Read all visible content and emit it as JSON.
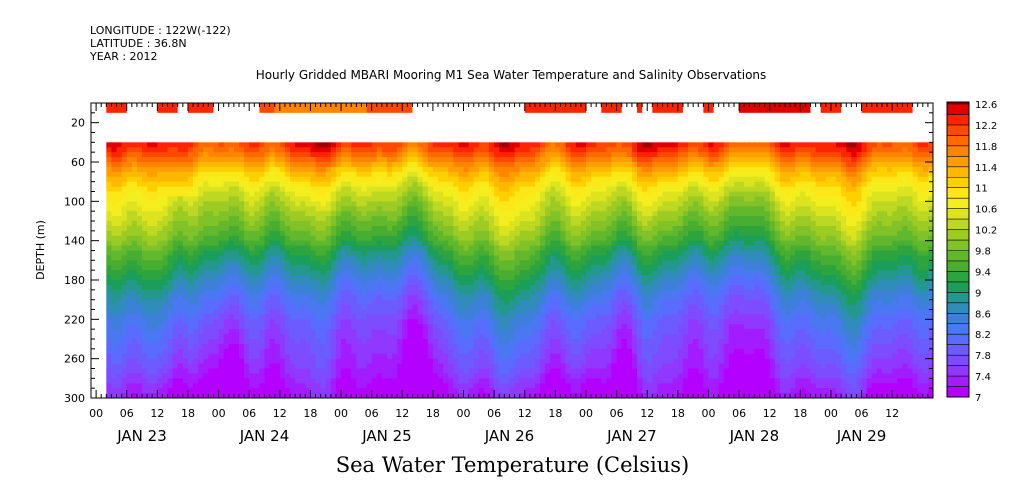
{
  "header": {
    "lines": [
      "LONGITUDE : 122W(-122)",
      "LATITUDE : 36.8N",
      "YEAR : 2012"
    ],
    "title": "Hourly Gridded MBARI Mooring M1 Sea Water Temperature and Salinity Observations"
  },
  "chart_data": {
    "type": "heatmap",
    "title": "Hourly Gridded MBARI Mooring M1 Sea Water Temperature and Salinity Observations",
    "xlabel": "",
    "ylabel": "DEPTH (m)",
    "colorbar_label": "Sea Water Temperature (Celsius)",
    "x_unit": "hours",
    "x_range_hours": [
      -3,
      162
    ],
    "x_tick_labels": [
      "00",
      "06",
      "12",
      "18",
      "00",
      "06",
      "12",
      "18",
      "00",
      "06",
      "12",
      "18",
      "00",
      "06",
      "12",
      "18",
      "00",
      "06",
      "12",
      "18",
      "00",
      "06",
      "12",
      "18",
      "00",
      "06",
      "12"
    ],
    "x_tick_hours": [
      -2,
      4,
      10,
      16,
      22,
      28,
      34,
      40,
      46,
      52,
      58,
      64,
      70,
      76,
      82,
      88,
      94,
      100,
      106,
      112,
      118,
      124,
      130,
      136,
      142,
      148,
      154
    ],
    "day_labels": [
      "JAN 23",
      "JAN 24",
      "JAN 25",
      "JAN 26",
      "JAN 27",
      "JAN 28",
      "JAN 29"
    ],
    "day_label_hours": [
      7,
      31,
      55,
      79,
      103,
      127,
      148
    ],
    "y_range": [
      0,
      300
    ],
    "y_ticks": [
      20,
      60,
      100,
      140,
      180,
      220,
      260,
      300
    ],
    "data_top_depth": 40,
    "colorbar_levels": [
      7,
      7.2,
      7.4,
      7.6,
      7.8,
      8,
      8.2,
      8.4,
      8.6,
      8.8,
      9,
      9.2,
      9.4,
      9.6,
      9.8,
      10,
      10.2,
      10.4,
      10.6,
      10.8,
      11,
      11.2,
      11.4,
      11.6,
      11.8,
      12,
      12.2,
      12.4,
      12.6
    ],
    "colorbar_tick_labels": [
      "7",
      "7.4",
      "7.8",
      "8.2",
      "8.6",
      "9",
      "9.4",
      "9.8",
      "10.2",
      "10.6",
      "11",
      "11.4",
      "11.8",
      "12.2",
      "12.6"
    ],
    "colorbar_colors": [
      "#b400ff",
      "#a21cff",
      "#9038ff",
      "#7e4cff",
      "#6c5cff",
      "#5a6cff",
      "#4a78f0",
      "#3c80d8",
      "#308cb8",
      "#24988c",
      "#1a9e5a",
      "#2ea43e",
      "#48ae32",
      "#62b82c",
      "#80c228",
      "#9ccc24",
      "#bcd822",
      "#dce420",
      "#f4ee1e",
      "#fce818",
      "#ffd000",
      "#ffb800",
      "#ff9e00",
      "#ff8400",
      "#ff6a00",
      "#ff4800",
      "#ff2400",
      "#e00000",
      "#a00000"
    ],
    "profile_depths": [
      40,
      50,
      60,
      70,
      80,
      90,
      100,
      110,
      120,
      130,
      140,
      150,
      160,
      170,
      180,
      190,
      200,
      210,
      220,
      230,
      240,
      250,
      260,
      270,
      280,
      290,
      300
    ],
    "profile_temps": [
      12.3,
      12.0,
      11.6,
      11.2,
      10.9,
      10.6,
      10.4,
      10.2,
      10.0,
      9.8,
      9.6,
      9.3,
      9.1,
      8.9,
      8.7,
      8.5,
      8.3,
      8.2,
      8.0,
      7.9,
      7.8,
      7.7,
      7.6,
      7.5,
      7.35,
      7.2,
      7.1
    ],
    "surface_segments": [
      {
        "start": 0,
        "end": 4,
        "value": 12.2
      },
      {
        "start": 10,
        "end": 14,
        "value": 12.2
      },
      {
        "start": 16,
        "end": 21,
        "value": 12.2
      },
      {
        "start": 30,
        "end": 33,
        "value": 12.0
      },
      {
        "start": 33,
        "end": 51,
        "value": 11.6
      },
      {
        "start": 51,
        "end": 60,
        "value": 12.0
      },
      {
        "start": 82,
        "end": 94,
        "value": 12.2
      },
      {
        "start": 97,
        "end": 101,
        "value": 12.2
      },
      {
        "start": 104,
        "end": 105,
        "value": 12.2
      },
      {
        "start": 107,
        "end": 113,
        "value": 12.2
      },
      {
        "start": 117,
        "end": 119,
        "value": 12.2
      },
      {
        "start": 124,
        "end": 138,
        "value": 12.4
      },
      {
        "start": 140,
        "end": 144,
        "value": 12.2
      },
      {
        "start": 148,
        "end": 158,
        "value": 12.2
      }
    ]
  }
}
